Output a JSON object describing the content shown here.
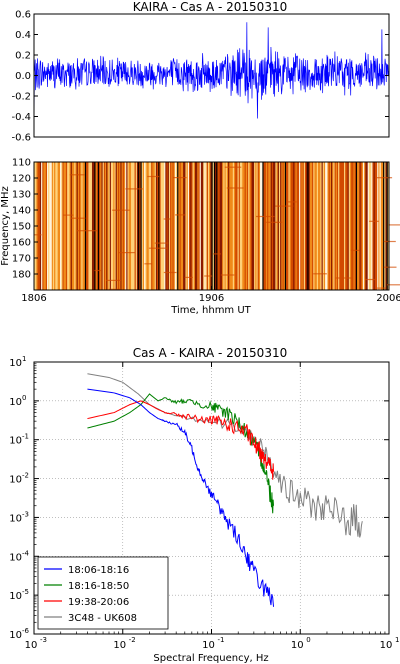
{
  "figure": {
    "panel_ts": {
      "title": "KAIRA - Cas A - 20150310",
      "yticks": [
        "0.6",
        "0.4",
        "0.2",
        "0.0",
        "-0.2",
        "-0.4",
        "-0.6"
      ],
      "color": "#0000ff"
    },
    "panel_spec": {
      "ylabel": "Frequency, MHz",
      "xlabel": "Time, hhmm UT",
      "yticks": [
        "110",
        "120",
        "130",
        "140",
        "150",
        "160",
        "170",
        "180"
      ],
      "xticks": [
        "1806",
        "1906",
        "2006"
      ]
    },
    "panel_psd": {
      "title": "Cas A - KAIRA - 20150310",
      "xlabel": "Spectral Frequency, Hz",
      "xtick_exponents": [
        "-3",
        "-2",
        "-1",
        "0",
        "1"
      ],
      "ytick_exponents": [
        "1",
        "0",
        "-1",
        "-2",
        "-3",
        "-4",
        "-5",
        "-6"
      ],
      "tick_base": "10"
    }
  },
  "chart_data": [
    {
      "type": "line",
      "title": "KAIRA - Cas A - 20150310",
      "xlabel": "",
      "ylabel": "",
      "ylim": [
        -0.6,
        0.6
      ],
      "grid": false,
      "series": [
        {
          "color": "#0000ff",
          "envelope": {
            "t_fraction": [
              0.0,
              0.1,
              0.2,
              0.3,
              0.4,
              0.5,
              0.55,
              0.6,
              0.65,
              0.7,
              0.8,
              0.9,
              1.0
            ],
            "amplitude": [
              0.16,
              0.15,
              0.15,
              0.14,
              0.16,
              0.18,
              0.2,
              0.28,
              0.24,
              0.2,
              0.2,
              0.19,
              0.18
            ]
          },
          "features": [
            {
              "t_fraction": 0.0,
              "value": -0.55
            },
            {
              "t_fraction": 0.6,
              "value": 0.52
            },
            {
              "t_fraction": 0.63,
              "value": -0.42
            },
            {
              "t_fraction": 0.66,
              "value": 0.47
            },
            {
              "t_fraction": 0.98,
              "value": 0.45
            }
          ]
        }
      ]
    },
    {
      "type": "heatmap",
      "title": "",
      "xlabel": "Time, hhmm UT",
      "ylabel": "Frequency, MHz",
      "x_ticks": [
        "1806",
        "1906",
        "2006"
      ],
      "ylim": [
        110,
        190
      ],
      "colormap": [
        "#000000",
        "#8b1a00",
        "#d24a00",
        "#f08a1a",
        "#ffd27a",
        "#fff5e0"
      ],
      "description_values": "vertical time-striped intensity, near-uniform across frequency"
    },
    {
      "type": "line",
      "title": "Cas A - KAIRA - 20150310",
      "xlabel": "Spectral Frequency, Hz",
      "ylabel": "",
      "x_scale": "log",
      "y_scale": "log",
      "xlim": [
        0.001,
        10
      ],
      "ylim": [
        1e-06,
        10
      ],
      "grid": true,
      "legend": "bottom-left",
      "series": [
        {
          "name": "18:06-18:16",
          "color": "#0000ff",
          "x": [
            0.004,
            0.008,
            0.012,
            0.016,
            0.02,
            0.025,
            0.03,
            0.04,
            0.05,
            0.06,
            0.07,
            0.08,
            0.1,
            0.12,
            0.15,
            0.2,
            0.25,
            0.3,
            0.4,
            0.5
          ],
          "y": [
            2.0,
            1.6,
            1.2,
            0.8,
            0.5,
            0.35,
            0.3,
            0.25,
            0.15,
            0.06,
            0.02,
            0.01,
            0.004,
            0.002,
            0.0008,
            0.0003,
            0.0001,
            4e-05,
            1.5e-05,
            5e-06
          ]
        },
        {
          "name": "18:16-18:50",
          "color": "#008000",
          "x": [
            0.004,
            0.008,
            0.012,
            0.016,
            0.02,
            0.025,
            0.03,
            0.04,
            0.05,
            0.07,
            0.1,
            0.12,
            0.15,
            0.2,
            0.25,
            0.3,
            0.35,
            0.4,
            0.45,
            0.5
          ],
          "y": [
            0.2,
            0.3,
            0.5,
            0.8,
            1.5,
            1.0,
            1.2,
            0.9,
            1.0,
            0.9,
            0.7,
            0.6,
            0.5,
            0.3,
            0.15,
            0.08,
            0.04,
            0.02,
            0.005,
            0.002
          ]
        },
        {
          "name": "19:38-20:06",
          "color": "#ff0000",
          "x": [
            0.004,
            0.008,
            0.012,
            0.016,
            0.02,
            0.025,
            0.03,
            0.04,
            0.05,
            0.07,
            0.1,
            0.12,
            0.15,
            0.2,
            0.25,
            0.3,
            0.35,
            0.4,
            0.45,
            0.5
          ],
          "y": [
            0.35,
            0.5,
            0.8,
            1.0,
            0.8,
            0.6,
            0.5,
            0.45,
            0.4,
            0.35,
            0.3,
            0.3,
            0.25,
            0.2,
            0.15,
            0.08,
            0.05,
            0.04,
            0.02,
            0.015
          ]
        },
        {
          "name": "3C48 - UK608",
          "color": "#808080",
          "x": [
            0.004,
            0.007,
            0.01,
            0.015,
            0.02,
            0.03,
            0.05,
            0.1,
            0.2,
            0.3,
            0.4,
            0.5,
            0.7,
            1.0,
            1.5,
            2.0,
            3.0,
            4.0,
            5.0
          ],
          "y": [
            5.0,
            4.0,
            3.0,
            1.5,
            0.8,
            0.5,
            0.4,
            0.3,
            0.2,
            0.1,
            0.05,
            0.02,
            0.005,
            0.003,
            0.002,
            0.0015,
            0.001,
            0.0008,
            0.0008
          ]
        }
      ]
    }
  ]
}
